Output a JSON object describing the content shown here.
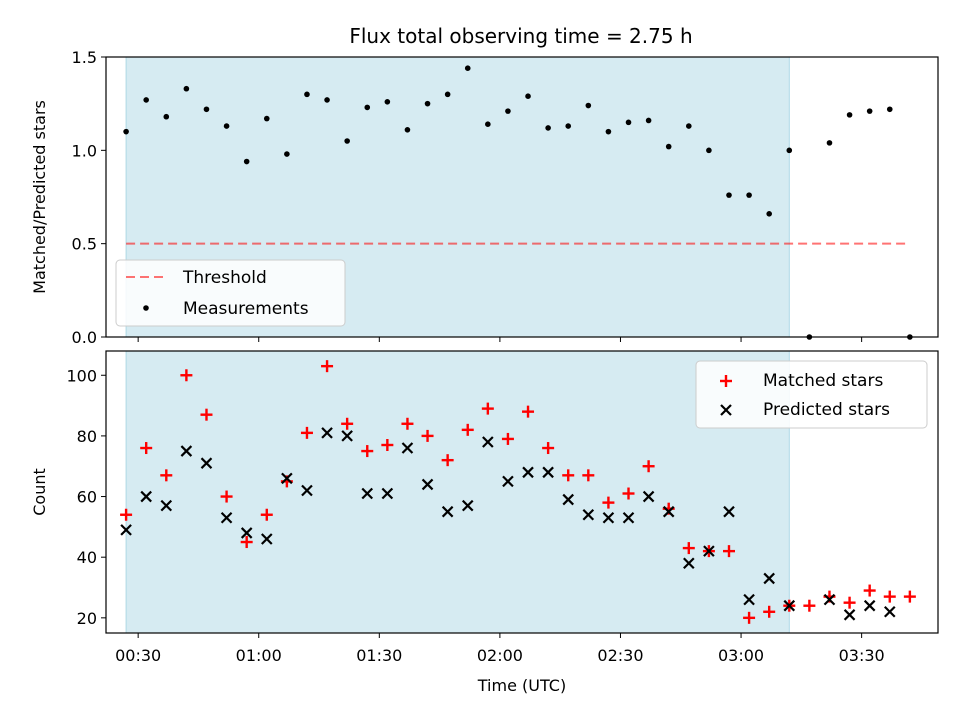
{
  "title": "Flux total observing time = 2.75 h",
  "colors": {
    "shade": "#add8e6",
    "threshold": "#ff0000",
    "measurements": "#000000",
    "matched": "#ff0000",
    "predicted": "#000000"
  },
  "chart_data": [
    {
      "type": "scatter",
      "ylabel": "Matched/Predicted stars",
      "ylim": [
        0,
        1.5
      ],
      "yticks": [
        0.0,
        0.5,
        1.0,
        1.5
      ],
      "ytick_labels": [
        "0.0",
        "0.5",
        "1.0",
        "1.5"
      ],
      "shaded_span": [
        "00:27",
        "03:12"
      ],
      "legend": {
        "position": "lower-left",
        "entries": [
          "Threshold",
          "Measurements"
        ]
      },
      "threshold": {
        "name": "Threshold",
        "value": 0.5,
        "x_range": [
          "00:27",
          "03:42"
        ]
      },
      "series": [
        {
          "name": "Measurements",
          "x": [
            "00:27",
            "00:32",
            "00:37",
            "00:42",
            "00:47",
            "00:52",
            "00:57",
            "01:02",
            "01:07",
            "01:12",
            "01:17",
            "01:22",
            "01:27",
            "01:32",
            "01:37",
            "01:42",
            "01:47",
            "01:52",
            "01:57",
            "02:02",
            "02:07",
            "02:12",
            "02:17",
            "02:22",
            "02:27",
            "02:32",
            "02:37",
            "02:42",
            "02:47",
            "02:52",
            "02:57",
            "03:02",
            "03:07",
            "03:12",
            "03:17",
            "03:22",
            "03:27",
            "03:32",
            "03:37",
            "03:42"
          ],
          "y": [
            1.1,
            1.27,
            1.18,
            1.33,
            1.22,
            1.13,
            0.94,
            1.17,
            0.98,
            1.3,
            1.27,
            1.05,
            1.23,
            1.26,
            1.11,
            1.25,
            1.3,
            1.44,
            1.14,
            1.21,
            1.29,
            1.12,
            1.13,
            1.24,
            1.1,
            1.15,
            1.16,
            1.02,
            1.13,
            1.0,
            0.76,
            0.76,
            0.66,
            1.0,
            0.0,
            1.04,
            1.19,
            1.21,
            1.22,
            0.0
          ]
        }
      ]
    },
    {
      "type": "scatter",
      "xlabel": "Time (UTC)",
      "ylabel": "Count",
      "ylim": [
        15,
        108
      ],
      "yticks": [
        20,
        40,
        60,
        80,
        100
      ],
      "ytick_labels": [
        "20",
        "40",
        "60",
        "80",
        "100"
      ],
      "xticks": [
        "00:30",
        "01:00",
        "01:30",
        "02:00",
        "02:30",
        "03:00",
        "03:30"
      ],
      "xlim": [
        "00:22",
        "03:49"
      ],
      "shaded_span": [
        "00:27",
        "03:12"
      ],
      "legend": {
        "position": "upper-right",
        "entries": [
          "Matched stars",
          "Predicted stars"
        ]
      },
      "series": [
        {
          "name": "Matched stars",
          "marker": "plus",
          "x": [
            "00:27",
            "00:32",
            "00:37",
            "00:42",
            "00:47",
            "00:52",
            "00:57",
            "01:02",
            "01:07",
            "01:12",
            "01:17",
            "01:22",
            "01:27",
            "01:32",
            "01:37",
            "01:42",
            "01:47",
            "01:52",
            "01:57",
            "02:02",
            "02:07",
            "02:12",
            "02:17",
            "02:22",
            "02:27",
            "02:32",
            "02:37",
            "02:42",
            "02:47",
            "02:52",
            "02:57",
            "03:02",
            "03:07",
            "03:12",
            "03:17",
            "03:22",
            "03:27",
            "03:32",
            "03:37",
            "03:42"
          ],
          "y": [
            54,
            76,
            67,
            100,
            87,
            60,
            45,
            54,
            65,
            81,
            103,
            84,
            75,
            77,
            84,
            80,
            72,
            82,
            89,
            79,
            88,
            76,
            67,
            67,
            58,
            61,
            70,
            56,
            43,
            42,
            42,
            20,
            22,
            24,
            24,
            27,
            25,
            29,
            27,
            27
          ]
        },
        {
          "name": "Predicted stars",
          "marker": "x",
          "x": [
            "00:27",
            "00:32",
            "00:37",
            "00:42",
            "00:47",
            "00:52",
            "00:57",
            "01:02",
            "01:07",
            "01:12",
            "01:17",
            "01:22",
            "01:27",
            "01:32",
            "01:37",
            "01:42",
            "01:47",
            "01:52",
            "01:57",
            "02:02",
            "02:07",
            "02:12",
            "02:17",
            "02:22",
            "02:27",
            "02:32",
            "02:37",
            "02:42",
            "02:47",
            "02:52",
            "02:57",
            "03:02",
            "03:07",
            "03:12",
            "03:22",
            "03:27",
            "03:32",
            "03:37"
          ],
          "y": [
            49,
            60,
            57,
            75,
            71,
            53,
            48,
            46,
            66,
            62,
            81,
            80,
            61,
            61,
            76,
            64,
            55,
            57,
            78,
            65,
            68,
            68,
            59,
            54,
            53,
            53,
            60,
            55,
            38,
            42,
            55,
            26,
            33,
            24,
            26,
            21,
            24,
            22
          ]
        }
      ]
    }
  ]
}
